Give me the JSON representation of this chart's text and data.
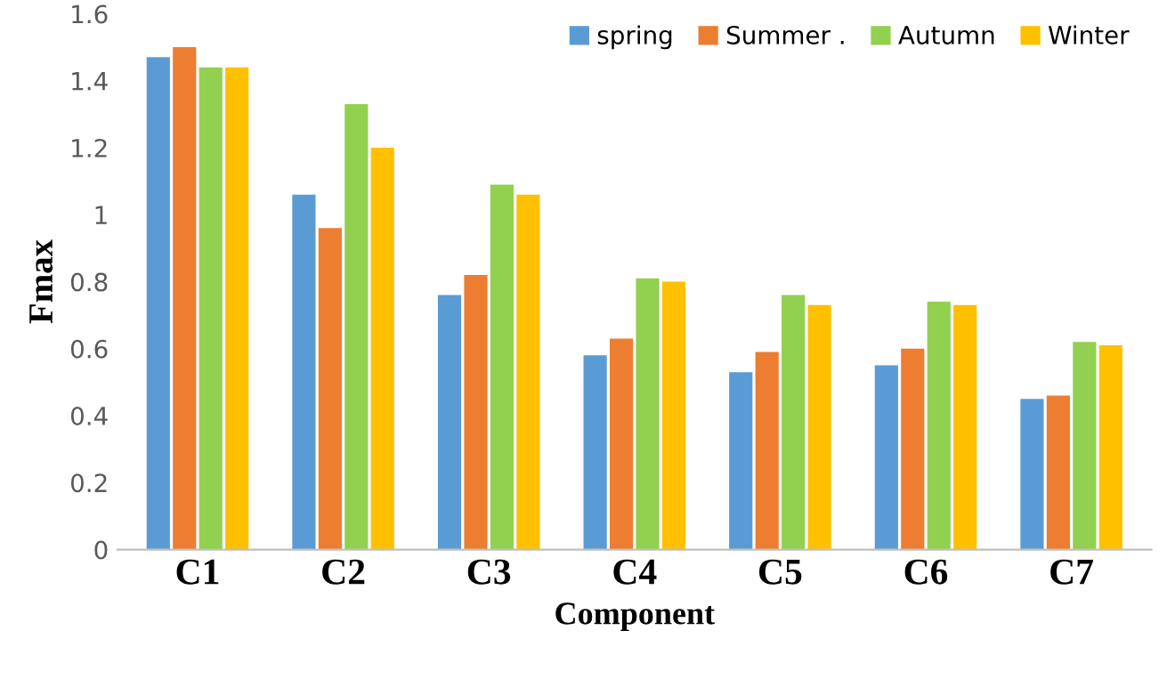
{
  "chart_data": {
    "type": "bar",
    "xlabel": "Component",
    "ylabel": "Fmax",
    "categories": [
      "C1",
      "C2",
      "C3",
      "C4",
      "C5",
      "C6",
      "C7"
    ],
    "series": [
      {
        "name": "spring",
        "color": "#5b9bd5",
        "values": [
          1.47,
          1.06,
          0.76,
          0.58,
          0.53,
          0.55,
          0.45
        ]
      },
      {
        "name": "Summer .",
        "color": "#ed7d31",
        "values": [
          1.5,
          0.96,
          0.82,
          0.63,
          0.59,
          0.6,
          0.46
        ]
      },
      {
        "name": "Autumn",
        "color": "#92d050",
        "values": [
          1.44,
          1.33,
          1.09,
          0.81,
          0.76,
          0.74,
          0.62
        ]
      },
      {
        "name": "Winter",
        "color": "#ffc000",
        "values": [
          1.44,
          1.2,
          1.06,
          0.8,
          0.73,
          0.73,
          0.61
        ]
      }
    ],
    "ylim": [
      0,
      1.6
    ],
    "yticks": [
      0,
      0.2,
      0.4,
      0.6,
      0.8,
      1,
      1.2,
      1.4,
      1.6
    ],
    "grid": false,
    "legend": "top right"
  }
}
